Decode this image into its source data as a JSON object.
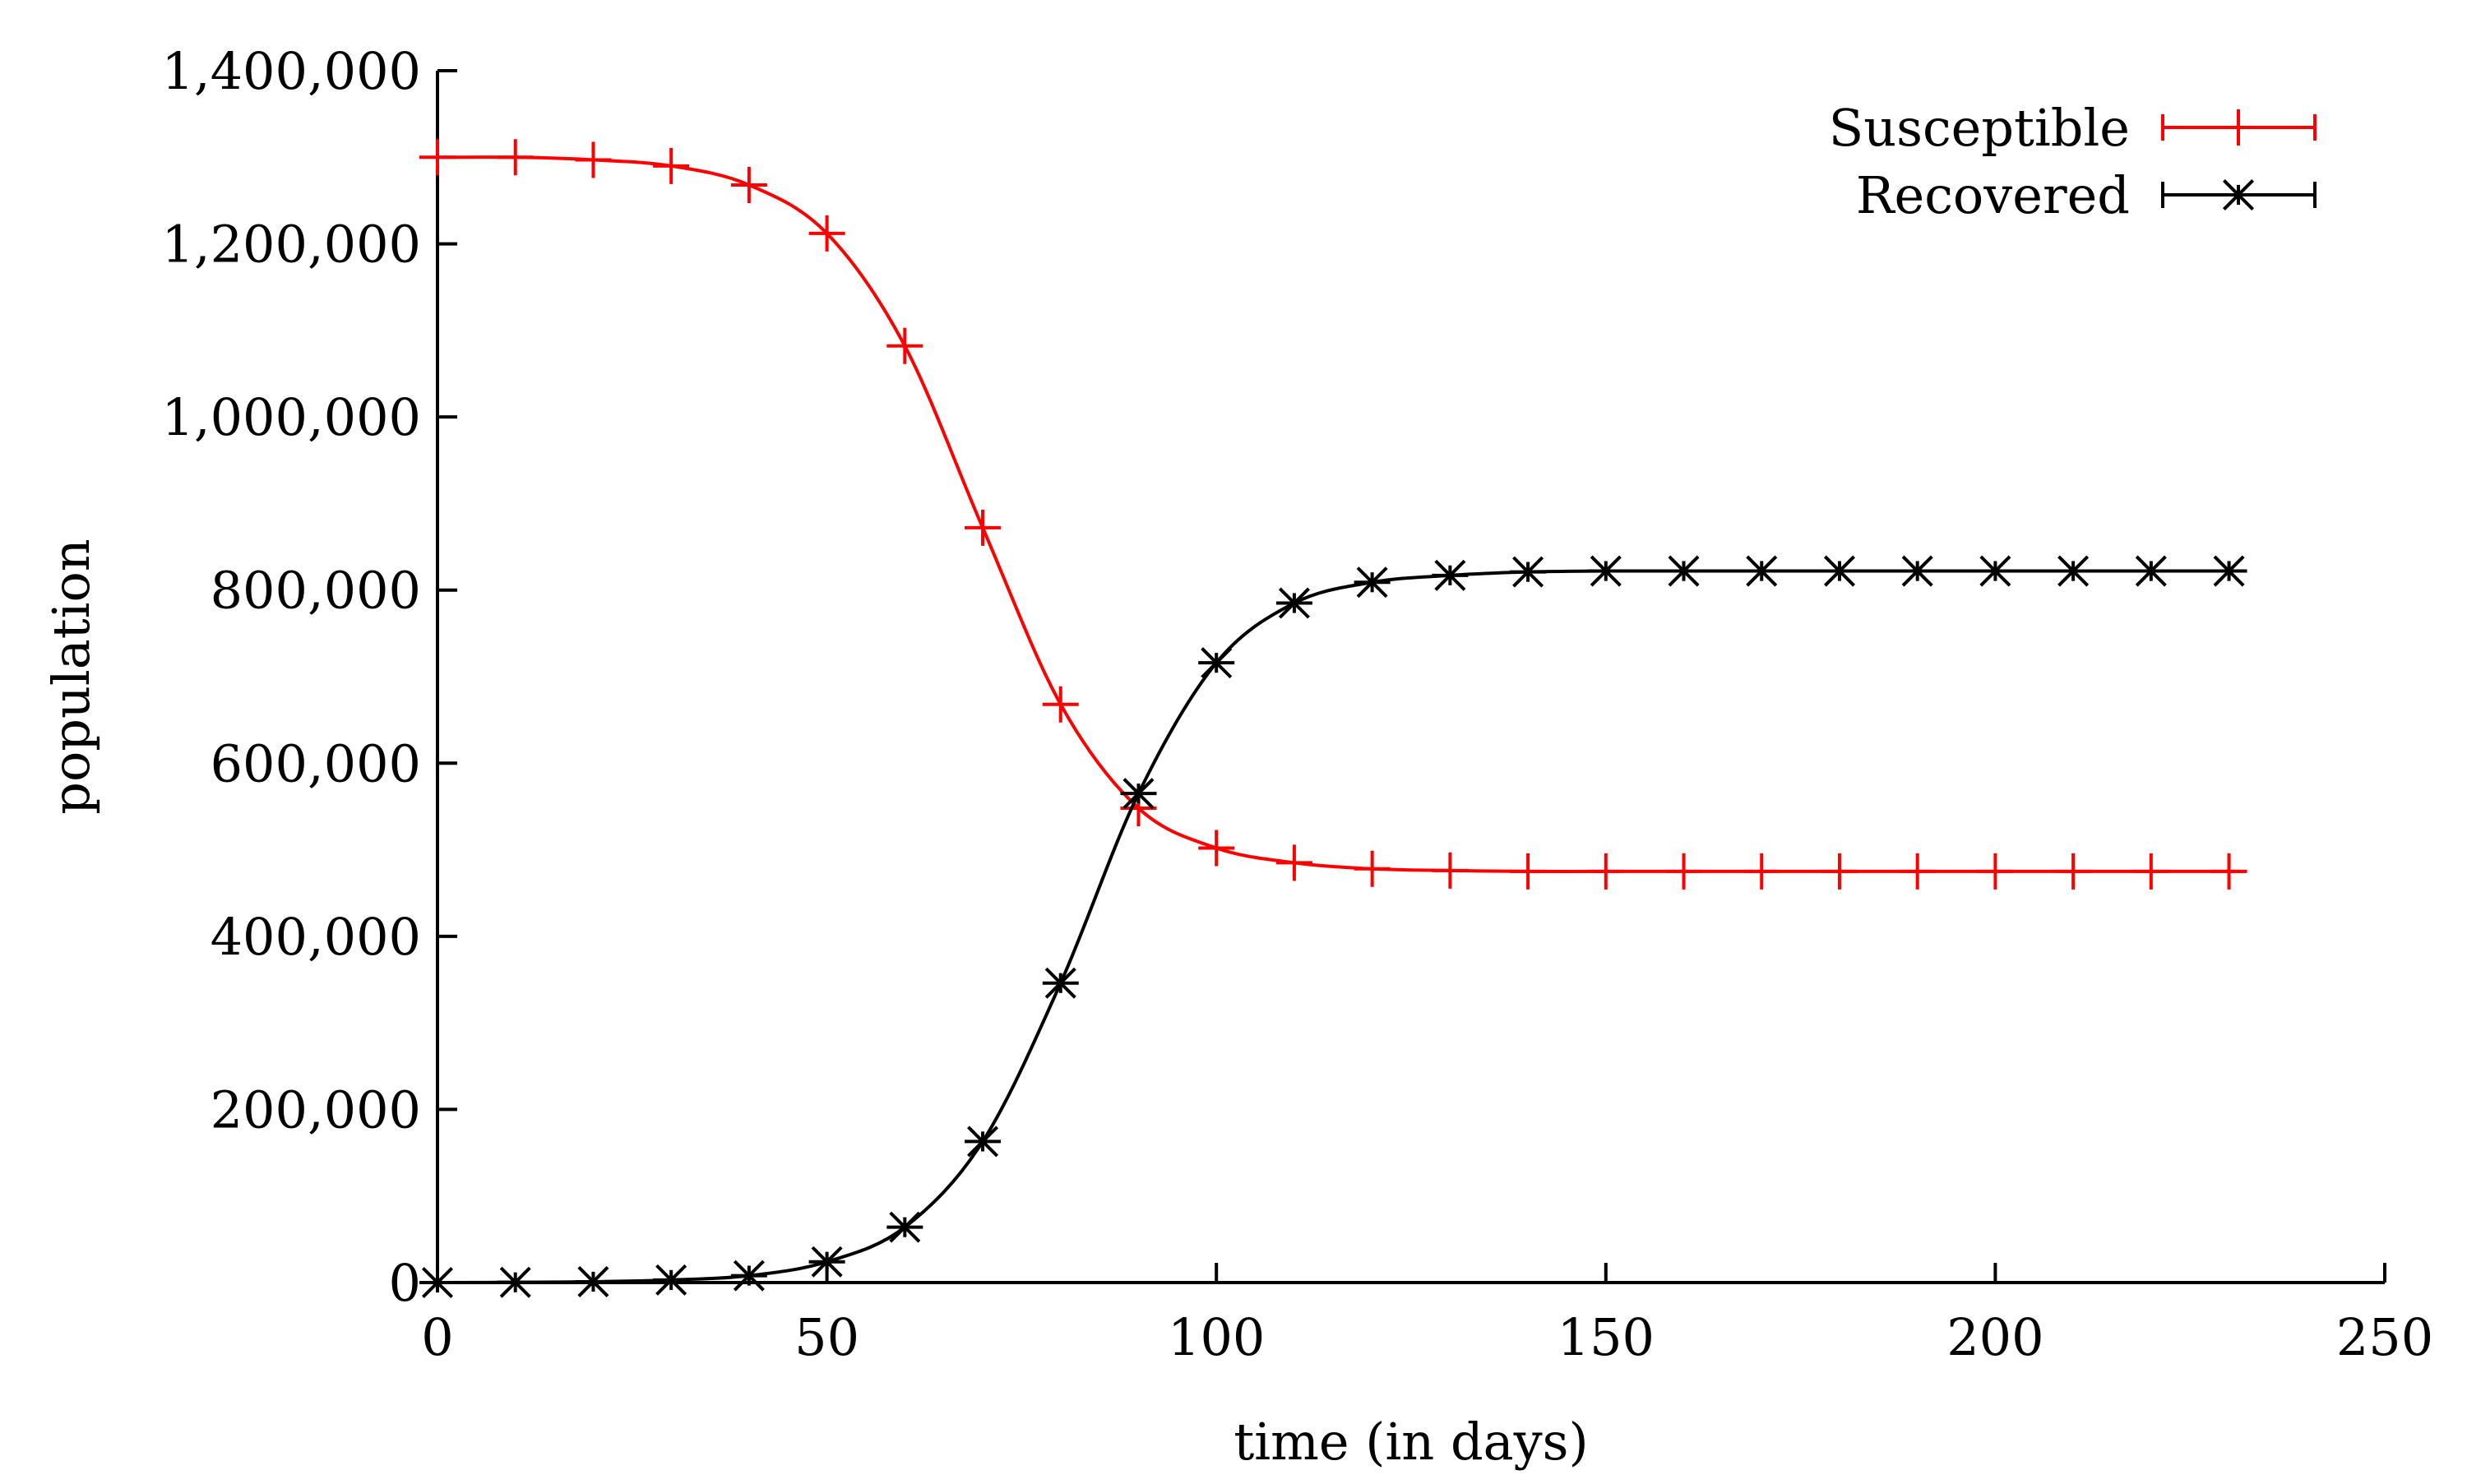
{
  "chart_data": {
    "type": "line",
    "xlabel": "time (in days)",
    "ylabel": "population",
    "xlim": [
      0,
      250
    ],
    "ylim": [
      0,
      1400000
    ],
    "x_ticks": [
      0,
      50,
      100,
      150,
      200,
      250
    ],
    "x_tick_labels": [
      "0",
      "50",
      "100",
      "150",
      "200",
      "250"
    ],
    "y_ticks": [
      0,
      200000,
      400000,
      600000,
      800000,
      1000000,
      1200000,
      1400000
    ],
    "y_tick_labels": [
      "0",
      "200,000",
      "400,000",
      "600,000",
      "800,000",
      "1,000,000",
      "1,200,000",
      "1,400,000"
    ],
    "grid": false,
    "legend_position": "top-right",
    "series": [
      {
        "name": "Susceptible",
        "color": "#ff0000",
        "marker": "plus",
        "x": [
          0,
          10,
          20,
          30,
          40,
          50,
          60,
          70,
          80,
          90,
          100,
          110,
          120,
          130,
          140,
          150,
          160,
          170,
          180,
          190,
          200,
          210,
          220,
          230
        ],
        "values": [
          1300000,
          1300000,
          1297000,
          1290000,
          1268000,
          1212000,
          1082000,
          872000,
          668000,
          548000,
          502000,
          485000,
          478000,
          476000,
          475000,
          475000,
          475000,
          475000,
          475000,
          475000,
          475000,
          475000,
          475000,
          475000
        ]
      },
      {
        "name": "Recovered",
        "color": "#000000",
        "marker": "star",
        "x": [
          0,
          10,
          20,
          30,
          40,
          50,
          60,
          70,
          80,
          90,
          100,
          110,
          120,
          130,
          140,
          150,
          160,
          170,
          180,
          190,
          200,
          210,
          220,
          230
        ],
        "values": [
          0,
          300,
          1000,
          3000,
          8000,
          24000,
          64000,
          163000,
          346000,
          565000,
          716000,
          785000,
          809000,
          817000,
          821000,
          822000,
          822000,
          822000,
          822000,
          822000,
          822000,
          822000,
          822000,
          822000
        ]
      }
    ]
  }
}
